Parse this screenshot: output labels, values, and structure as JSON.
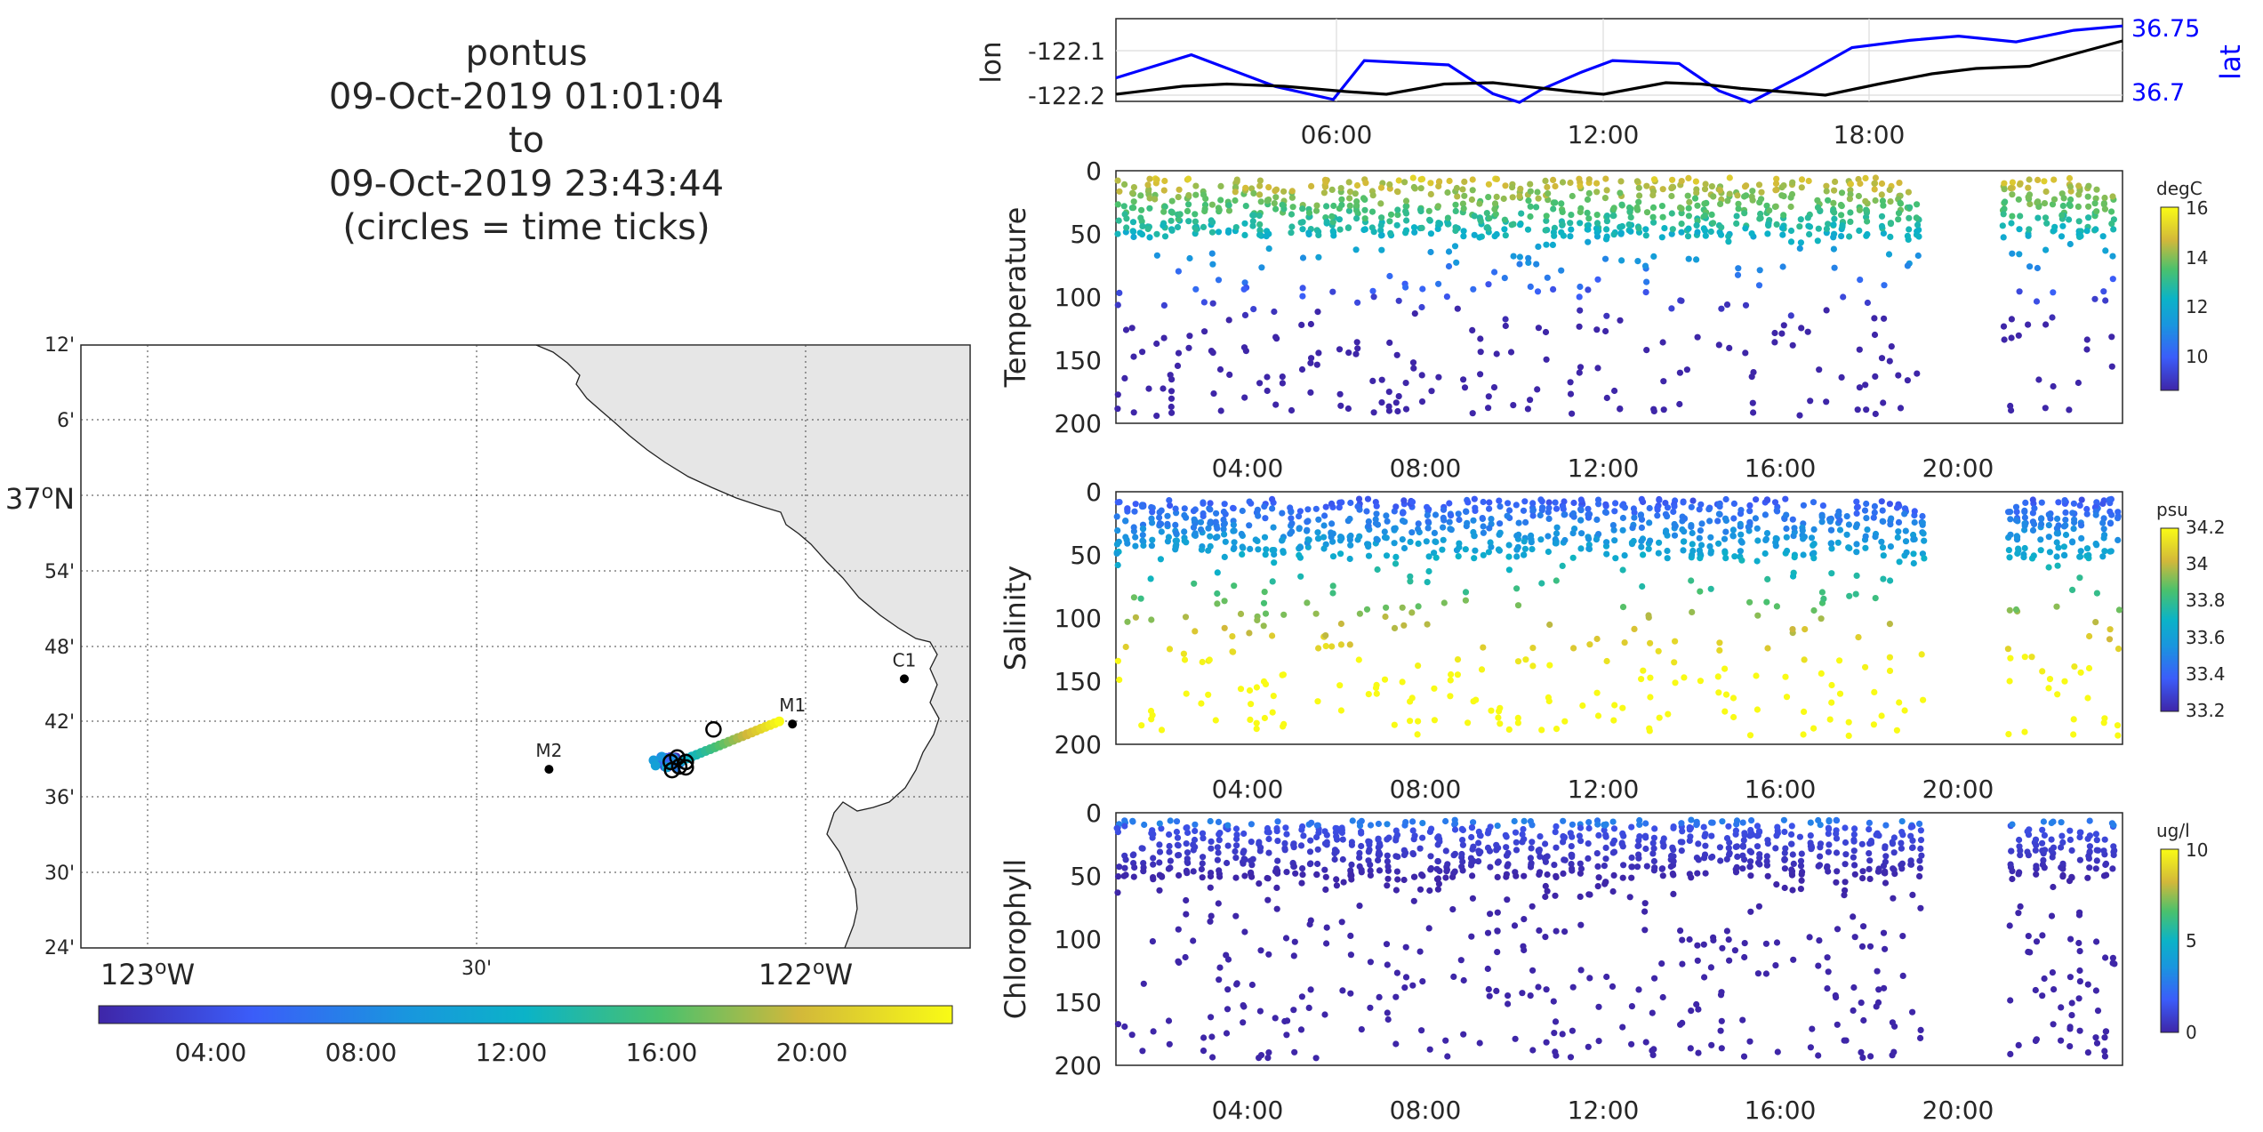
{
  "title_lines": [
    "pontus",
    "09-Oct-2019 01:01:04",
    "to",
    "09-Oct-2019 23:43:44",
    "(circles = time ticks)"
  ],
  "colors": {
    "lat_axis": "#0000ff",
    "lon_line": "#000000",
    "land": "#e6e6e6"
  },
  "chart_data": [
    {
      "type": "map",
      "lon_tick_labels": [
        "123",
        "30'",
        "122"
      ],
      "lon_tick_suffix": "W",
      "lat_tick_labels": [
        "12'",
        "6'",
        "37",
        "54'",
        "48'",
        "42'",
        "36'",
        "30'",
        "24'"
      ],
      "lat_tick_suffix": "N",
      "stations": [
        {
          "name": "C1",
          "lon": -121.85,
          "lat": 36.797
        },
        {
          "name": "M1",
          "lon": -122.02,
          "lat": 36.747
        },
        {
          "name": "M2",
          "lon": -122.39,
          "lat": 36.697
        }
      ],
      "track": {
        "start": [
          -122.21,
          36.7
        ],
        "end": [
          -122.04,
          36.75
        ]
      },
      "time_tick_circles": [
        [
          -122.195,
          36.71
        ],
        [
          -122.182,
          36.705
        ],
        [
          -122.205,
          36.705
        ],
        [
          -122.192,
          36.7
        ],
        [
          -122.182,
          36.699
        ],
        [
          -122.203,
          36.696
        ],
        [
          -122.14,
          36.741
        ]
      ],
      "colorbar": {
        "ticks": [
          "04:00",
          "08:00",
          "12:00",
          "16:00",
          "20:00"
        ]
      },
      "grid": true
    },
    {
      "type": "line",
      "x_ticks": [
        "06:00",
        "12:00",
        "18:00"
      ],
      "left": {
        "label": "lon",
        "ticks": [
          "-122.1",
          "-122.2"
        ]
      },
      "right": {
        "label": "lat",
        "ticks": [
          "36.75",
          "36.7"
        ]
      },
      "series": [
        {
          "axis": "lat",
          "x": [
            1.0,
            2.7,
            4.6,
            5.9,
            6.6,
            8.5,
            9.5,
            10.1,
            10.6,
            11.5,
            12.2,
            13.7,
            14.6,
            15.3,
            16.5,
            17.6,
            18.9,
            20.0,
            21.3,
            22.6,
            23.7
          ],
          "y": [
            36.712,
            36.728,
            36.706,
            36.697,
            36.724,
            36.721,
            36.701,
            36.695,
            36.704,
            36.716,
            36.724,
            36.722,
            36.703,
            36.695,
            36.714,
            36.733,
            36.738,
            36.741,
            36.737,
            36.745,
            36.748
          ]
        },
        {
          "axis": "lon",
          "x": [
            1.0,
            2.5,
            3.5,
            4.8,
            6.2,
            7.1,
            8.4,
            9.5,
            10.4,
            11.3,
            12.0,
            13.4,
            14.2,
            15.1,
            16.0,
            17.0,
            18.2,
            19.4,
            20.4,
            21.6,
            22.7,
            23.7
          ],
          "y": [
            -122.198,
            -122.18,
            -122.175,
            -122.18,
            -122.192,
            -122.198,
            -122.175,
            -122.172,
            -122.182,
            -122.192,
            -122.198,
            -122.172,
            -122.175,
            -122.185,
            -122.192,
            -122.2,
            -122.175,
            -122.152,
            -122.14,
            -122.135,
            -122.105,
            -122.078
          ]
        }
      ]
    },
    {
      "type": "scatter",
      "ylabel": "Temperature",
      "unit": "degC",
      "y_ticks": [
        "0",
        "50",
        "100",
        "150",
        "200"
      ],
      "x_ticks": [
        "04:00",
        "08:00",
        "12:00",
        "16:00",
        "20:00"
      ],
      "colorbar_ticks": [
        "16",
        "14",
        "12",
        "10"
      ],
      "x_range_hours": [
        1.0,
        23.7
      ],
      "y_range_m": [
        0,
        200
      ]
    },
    {
      "type": "scatter",
      "ylabel": "Salinity",
      "unit": "psu",
      "y_ticks": [
        "0",
        "50",
        "100",
        "150",
        "200"
      ],
      "x_ticks": [
        "04:00",
        "08:00",
        "12:00",
        "16:00",
        "20:00"
      ],
      "colorbar_ticks": [
        "34.2",
        "34",
        "33.8",
        "33.6",
        "33.4",
        "33.2"
      ],
      "x_range_hours": [
        1.0,
        23.7
      ],
      "y_range_m": [
        0,
        200
      ]
    },
    {
      "type": "scatter",
      "ylabel": "Chlorophyll",
      "unit": "ug/l",
      "y_ticks": [
        "0",
        "50",
        "100",
        "150",
        "200"
      ],
      "x_ticks": [
        "04:00",
        "08:00",
        "12:00",
        "16:00",
        "20:00"
      ],
      "colorbar_ticks": [
        "10",
        "5",
        "0"
      ],
      "x_range_hours": [
        1.0,
        23.7
      ],
      "y_range_m": [
        0,
        200
      ]
    }
  ]
}
